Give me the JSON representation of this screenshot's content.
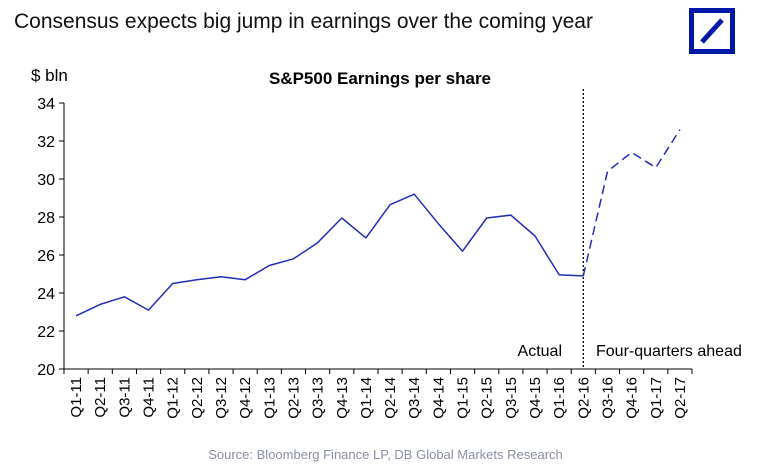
{
  "headline": "Consensus expects big jump in earnings over the coming year",
  "source": "Source: Bloomberg Finance LP, DB Global Markets Research",
  "logo": {
    "icon": "deutsche-bank-logo-icon",
    "color": "#0018a8"
  },
  "chart_data": {
    "type": "line",
    "title": "S&P500 Earnings per share",
    "ylabel": "$ bln",
    "xlabel": "",
    "ylim": [
      20,
      34
    ],
    "yticks": [
      20,
      22,
      24,
      26,
      28,
      30,
      32,
      34
    ],
    "grid": false,
    "categories": [
      "Q1-11",
      "Q2-11",
      "Q3-11",
      "Q4-11",
      "Q1-12",
      "Q2-12",
      "Q3-12",
      "Q4-12",
      "Q1-13",
      "Q2-13",
      "Q3-13",
      "Q4-13",
      "Q1-14",
      "Q2-14",
      "Q3-14",
      "Q4-14",
      "Q1-15",
      "Q2-15",
      "Q3-15",
      "Q4-15",
      "Q1-16",
      "Q2-16",
      "Q3-16",
      "Q4-16",
      "Q1-17",
      "Q2-17"
    ],
    "series": [
      {
        "style": "solid",
        "color": "#1f2fb8",
        "x": [
          "Q1-11",
          "Q2-11",
          "Q3-11",
          "Q4-11",
          "Q1-12",
          "Q2-12",
          "Q3-12",
          "Q4-12",
          "Q1-13",
          "Q2-13",
          "Q3-13",
          "Q4-13",
          "Q1-14",
          "Q2-14",
          "Q3-14",
          "Q4-14",
          "Q1-15",
          "Q2-15",
          "Q3-15",
          "Q4-15",
          "Q1-16",
          "Q2-16"
        ],
        "values": [
          22.8,
          23.4,
          23.8,
          23.1,
          24.5,
          24.7,
          24.85,
          24.7,
          25.45,
          25.8,
          26.65,
          27.95,
          26.9,
          28.65,
          29.2,
          27.65,
          26.2,
          27.95,
          28.1,
          27.0,
          24.95,
          24.9
        ]
      },
      {
        "style": "dashed",
        "color": "#1f2fb8",
        "x": [
          "Q2-16",
          "Q3-16",
          "Q4-16",
          "Q1-17",
          "Q2-17"
        ],
        "values": [
          24.9,
          30.4,
          31.4,
          30.6,
          32.6
        ]
      }
    ],
    "divider": {
      "at": "Q2-16",
      "style": "dotted",
      "color": "#000000"
    },
    "annotations": {
      "left": "Actual",
      "right": "Four-quarters ahead"
    }
  }
}
